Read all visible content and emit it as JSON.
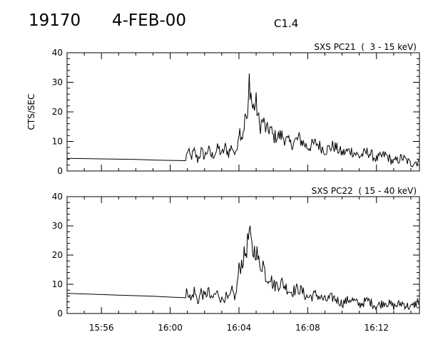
{
  "header": {
    "event_number": "19170",
    "date": "4-FEB-00",
    "flare_class": "C1.4"
  },
  "chart_data": [
    {
      "type": "line",
      "title": "SXS PC21  (  3 - 15 keV)",
      "ylabel": "CTS/SEC",
      "xlabel": "",
      "x_unit": "minutes after 15:54 UT",
      "xlim": [
        0,
        20.5
      ],
      "ylim": [
        0,
        40
      ],
      "yticks": [
        0,
        10,
        20,
        30,
        40
      ],
      "xtick_labels": [
        "15:56",
        "16:00",
        "16:04",
        "16:08",
        "16:12"
      ],
      "series": [
        {
          "color": "#000000",
          "x": [
            0,
            1,
            2,
            3,
            4,
            5,
            6,
            6.9,
            7.0,
            7.2,
            7.4,
            7.6,
            7.8,
            8.0,
            8.2,
            8.4,
            8.6,
            8.8,
            9.0,
            9.2,
            9.4,
            9.6,
            9.8,
            10.0,
            10.2,
            10.4,
            10.5,
            10.6,
            10.8,
            11.0,
            11.2,
            11.4,
            11.6,
            11.8,
            12.0,
            12.5,
            13.0,
            13.5,
            14.0,
            14.5,
            15.0,
            15.5,
            16.0,
            16.5,
            17.0,
            17.5,
            18.0,
            18.5,
            19.0,
            19.5,
            20.0,
            20.5
          ],
          "y": [
            4.3,
            4.2,
            4.1,
            4.0,
            3.9,
            3.7,
            3.6,
            3.5,
            7.0,
            4.5,
            6.5,
            3.8,
            6.8,
            4.8,
            7.5,
            5.0,
            6.0,
            7.8,
            5.5,
            8.0,
            6.0,
            8.5,
            5.0,
            14.0,
            12.0,
            19.0,
            16.0,
            31.0,
            21.0,
            23.0,
            15.0,
            17.0,
            13.5,
            14.5,
            11.5,
            12.0,
            9.0,
            11.0,
            8.0,
            9.5,
            7.0,
            8.5,
            6.0,
            7.0,
            5.0,
            6.5,
            4.0,
            5.5,
            3.0,
            4.5,
            2.5,
            3.5
          ]
        }
      ]
    },
    {
      "type": "line",
      "title": "SXS PC22  ( 15 - 40 keV)",
      "ylabel": "",
      "xlabel": "",
      "x_unit": "minutes after 15:54 UT",
      "xlim": [
        0,
        20.5
      ],
      "ylim": [
        0,
        40
      ],
      "yticks": [
        0,
        10,
        20,
        30,
        40
      ],
      "xtick_labels": [
        "15:56",
        "16:00",
        "16:04",
        "16:08",
        "16:12"
      ],
      "series": [
        {
          "color": "#000000",
          "x": [
            0,
            1,
            2,
            3,
            4,
            5,
            6,
            6.9,
            7.0,
            7.2,
            7.4,
            7.6,
            7.8,
            8.0,
            8.2,
            8.4,
            8.6,
            8.8,
            9.0,
            9.2,
            9.4,
            9.6,
            9.8,
            10.0,
            10.2,
            10.4,
            10.5,
            10.6,
            10.8,
            11.0,
            11.2,
            11.4,
            11.6,
            11.8,
            12.0,
            12.5,
            13.0,
            13.5,
            14.0,
            14.5,
            15.0,
            15.5,
            16.0,
            16.5,
            17.0,
            17.5,
            18.0,
            18.5,
            19.0,
            19.5,
            20.0,
            20.5
          ],
          "y": [
            6.9,
            6.7,
            6.5,
            6.3,
            6.1,
            5.9,
            5.6,
            5.4,
            8.5,
            4.5,
            7.8,
            4.0,
            7.5,
            5.5,
            8.0,
            4.5,
            6.5,
            7.0,
            4.5,
            6.0,
            4.5,
            7.5,
            5.5,
            15.0,
            18.0,
            21.0,
            24.0,
            27.5,
            21.0,
            22.0,
            16.0,
            17.5,
            12.0,
            13.0,
            9.5,
            10.5,
            7.5,
            8.5,
            5.5,
            6.5,
            4.5,
            5.5,
            3.5,
            5.0,
            3.0,
            4.5,
            2.5,
            4.0,
            2.5,
            3.5,
            2.0,
            4.5
          ]
        }
      ]
    }
  ]
}
